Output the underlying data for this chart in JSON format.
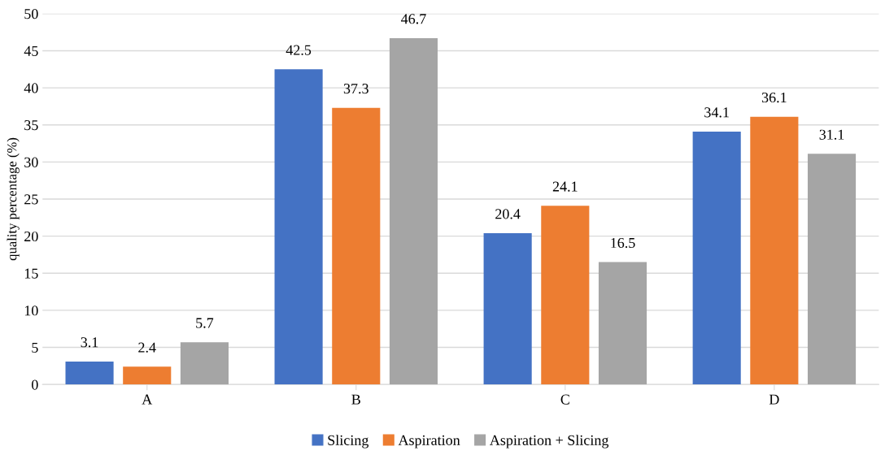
{
  "chart_data": {
    "type": "bar",
    "ylabel": "quality percentage (%)",
    "categories": [
      "A",
      "B",
      "C",
      "D"
    ],
    "series": [
      {
        "name": "Slicing",
        "color": "#4472c4",
        "values": [
          3.1,
          42.5,
          20.4,
          34.1
        ]
      },
      {
        "name": "Aspiration",
        "color": "#ed7d31",
        "values": [
          2.4,
          37.3,
          24.1,
          36.1
        ]
      },
      {
        "name": "Aspiration + Slicing",
        "color": "#a5a5a5",
        "values": [
          5.7,
          46.7,
          16.5,
          31.1
        ]
      }
    ],
    "ylim": [
      0,
      50
    ],
    "yticks": [
      0,
      5,
      10,
      15,
      20,
      25,
      30,
      35,
      40,
      45,
      50
    ],
    "grid": "y",
    "legend": "bottom",
    "data_labels": true
  }
}
